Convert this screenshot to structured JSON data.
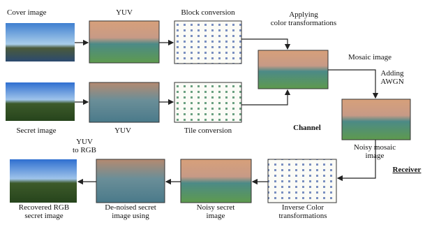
{
  "labels": {
    "cover_image": [
      "Cover image"
    ],
    "yuv_top": [
      "YUV"
    ],
    "block_conversion": [
      "Block conversion"
    ],
    "applying": [
      "Applying",
      "color transformations"
    ],
    "mosaic_image": [
      "Mosaic image"
    ],
    "adding_awgn": [
      "Adding",
      "AWGN"
    ],
    "secret_image": [
      "Secret image"
    ],
    "yuv_mid": [
      "YUV"
    ],
    "tile_conversion": [
      "Tile conversion"
    ],
    "channel": [
      "Channel"
    ],
    "noisy_mosaic": [
      "Noisy mosaic",
      "image"
    ],
    "receiver": [
      "Receiver"
    ],
    "yuv_to_rgb": [
      "YUV",
      "to RGB"
    ],
    "recovered": [
      "Recovered RGB",
      "secret image"
    ],
    "denoised": [
      "De-noised secret",
      "image using"
    ],
    "noisy_secret": [
      "Noisy secret",
      "image"
    ],
    "inverse_color": [
      "Inverse Color",
      "transformations"
    ]
  }
}
